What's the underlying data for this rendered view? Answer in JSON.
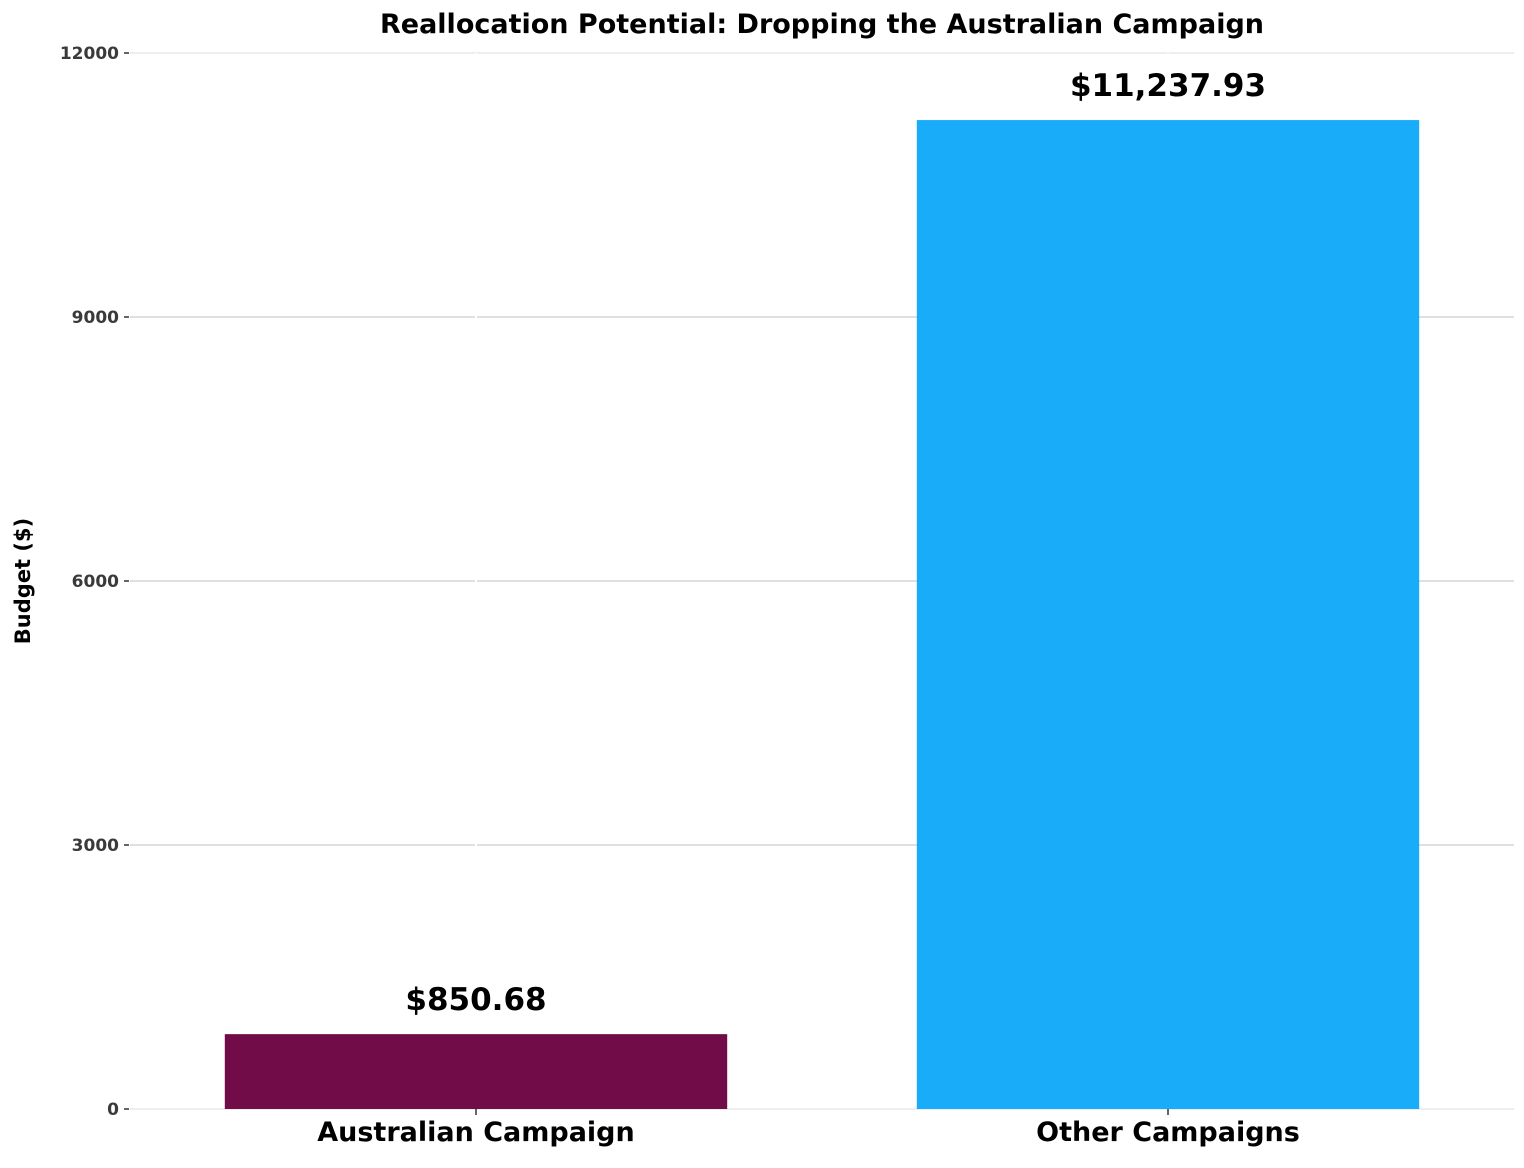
{
  "chart_data": {
    "type": "bar",
    "title": "Reallocation Potential: Dropping the Australian Campaign",
    "ylabel": "Budget ($)",
    "xlabel": "",
    "ylim": [
      0,
      12000
    ],
    "yticks": [
      0,
      3000,
      6000,
      9000,
      12000
    ],
    "ytick_labels": [
      "0",
      "3000",
      "6000",
      "9000",
      "12000"
    ],
    "categories": [
      "Australian Campaign",
      "Other Campaigns"
    ],
    "values": [
      850.68,
      11237.93
    ],
    "data_labels": [
      "$850.68",
      "$11,237.93"
    ],
    "colors": [
      "#720c48",
      "#19acf8"
    ],
    "grid": "horizontal",
    "grid_color": "#c2c2c2",
    "legend": "none"
  }
}
